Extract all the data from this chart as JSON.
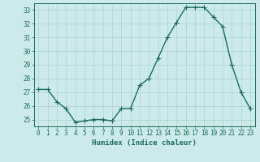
{
  "x": [
    0,
    1,
    2,
    3,
    4,
    5,
    6,
    7,
    8,
    9,
    10,
    11,
    12,
    13,
    14,
    15,
    16,
    17,
    18,
    19,
    20,
    21,
    22,
    23
  ],
  "y": [
    27.2,
    27.2,
    26.3,
    25.8,
    24.8,
    24.9,
    25.0,
    25.0,
    24.9,
    25.8,
    25.8,
    27.5,
    28.0,
    29.5,
    31.0,
    32.1,
    33.2,
    33.2,
    33.2,
    32.5,
    31.8,
    29.0,
    27.0,
    25.8
  ],
  "line_color": "#1a6b5e",
  "marker": "+",
  "marker_size": 4,
  "bg_color": "#cdeaea",
  "grid_color": "#b0d8d8",
  "xlabel": "Humidex (Indice chaleur)",
  "ylim": [
    24.5,
    33.5
  ],
  "xlim": [
    -0.5,
    23.5
  ],
  "yticks": [
    25,
    26,
    27,
    28,
    29,
    30,
    31,
    32,
    33
  ],
  "xticks": [
    0,
    1,
    2,
    3,
    4,
    5,
    6,
    7,
    8,
    9,
    10,
    11,
    12,
    13,
    14,
    15,
    16,
    17,
    18,
    19,
    20,
    21,
    22,
    23
  ],
  "font_color": "#1a6b5e",
  "xlabel_fontsize": 6.5,
  "tick_fontsize": 5.5,
  "linewidth": 1.0,
  "markeredgewidth": 0.8
}
